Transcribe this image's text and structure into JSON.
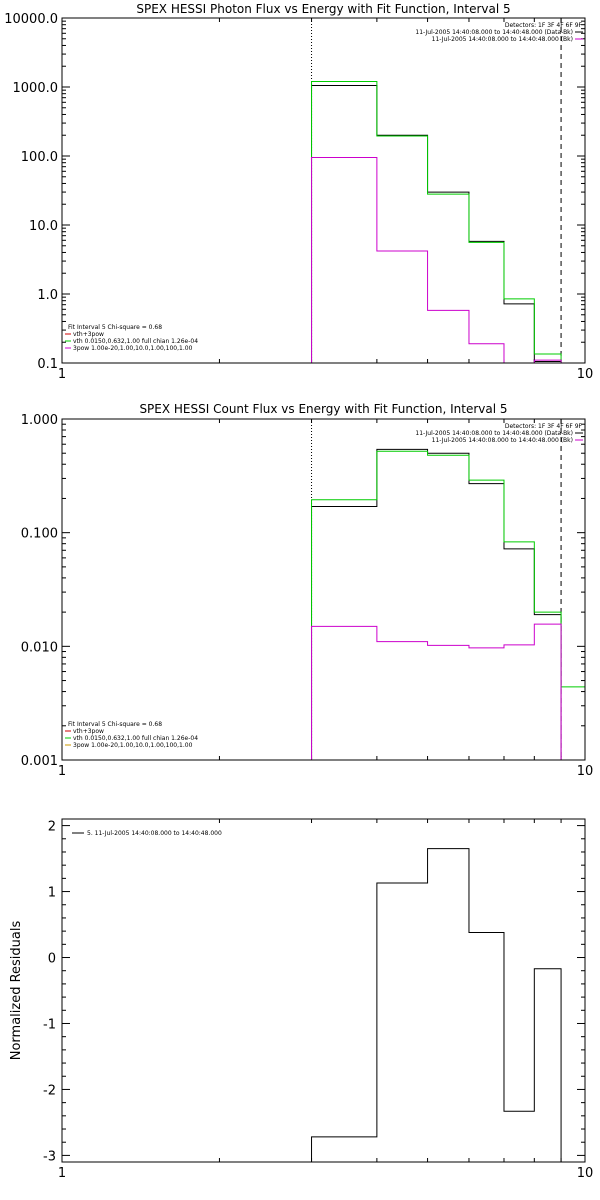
{
  "chart_data": [
    {
      "type": "line",
      "id": "photon",
      "title": "SPEX HESSI Photon Flux vs Energy with Fit Function, Interval 5",
      "xlabel": "",
      "ylabel": "",
      "xscale": "log",
      "yscale": "log",
      "xlim": [
        1,
        10
      ],
      "ylim": [
        0.1,
        10000
      ],
      "x_ticks": [
        "1",
        "10"
      ],
      "y_ticks": [
        "0.1",
        "1.0",
        "10.0",
        "100.0",
        "1000.0",
        "10000.0"
      ],
      "x_edges": [
        3,
        4,
        5,
        6,
        7,
        8,
        9
      ],
      "series": [
        {
          "color": "#000000",
          "values": [
            1050,
            200,
            30,
            5.8,
            0.72,
            0.105
          ]
        },
        {
          "color": "#00cc00",
          "values": [
            1200,
            195,
            28,
            5.6,
            0.85,
            0.135
          ]
        },
        {
          "color": "#cc00cc",
          "values": [
            95,
            4.2,
            0.58,
            0.19,
            0.1,
            0.11
          ]
        }
      ],
      "vlines": [
        {
          "x": 3,
          "style": "dotted"
        },
        {
          "x": 9,
          "style": "dashed"
        }
      ],
      "legend_topright": [
        {
          "text": "Detectors: 1F 3F 4F 6F 9F",
          "color": ""
        },
        {
          "text": "11-Jul-2005 14:40:08.000 to 14:40:48.000 (Data-Bk)",
          "color": "#000000"
        },
        {
          "text": "11-Jul-2005 14:40:08.000 to 14:40:48.000 (Bk)",
          "color": "#cc00cc"
        }
      ],
      "legend_bottomleft": [
        {
          "text": "Fit Interval 5   Chi-square = 0.68",
          "color": ""
        },
        {
          "text": "vth+3pow",
          "color": "#cc0000"
        },
        {
          "text": "vth 0.0150,0.632,1.00  full chian 1.26e-04",
          "color": "#00cc00"
        },
        {
          "text": "3pow 1.00e-20,1.00,10.0,1.00,100,1.00",
          "color": "#cc00cc"
        }
      ]
    },
    {
      "type": "line",
      "id": "count",
      "title": "SPEX HESSI Count Flux vs Energy with Fit Function, Interval 5",
      "xlabel": "",
      "ylabel": "",
      "xscale": "log",
      "yscale": "log",
      "xlim": [
        1,
        10
      ],
      "ylim": [
        0.001,
        1
      ],
      "x_ticks": [
        "1",
        "10"
      ],
      "y_ticks": [
        "0.001",
        "0.010",
        "0.100",
        "1.000"
      ],
      "x_edges": [
        3,
        4,
        5,
        6,
        7,
        8,
        9,
        10
      ],
      "series": [
        {
          "color": "#000000",
          "values": [
            0.17,
            0.54,
            0.5,
            0.27,
            0.072,
            0.019,
            null
          ]
        },
        {
          "color": "#00cc00",
          "values": [
            0.195,
            0.52,
            0.48,
            0.29,
            0.083,
            0.02,
            0.0044
          ]
        },
        {
          "color": "#cc00cc",
          "values": [
            0.015,
            0.011,
            0.0102,
            0.0097,
            0.0103,
            0.0157,
            null
          ]
        }
      ],
      "vlines": [
        {
          "x": 3,
          "style": "dotted"
        },
        {
          "x": 9,
          "style": "dashed"
        }
      ],
      "legend_topright": [
        {
          "text": "Detectors: 1F 3F 4F 6F 9F",
          "color": ""
        },
        {
          "text": "11-Jul-2005 14:40:08.000 to 14:40:48.000 (Data-Bk)",
          "color": "#000000"
        },
        {
          "text": "11-Jul-2005 14:40:08.000 to 14:40:48.000 (Bk)",
          "color": "#cc00cc"
        }
      ],
      "legend_bottomleft": [
        {
          "text": "Fit Interval 5   Chi-square = 0.68",
          "color": ""
        },
        {
          "text": "vth+3pow",
          "color": "#cc0000"
        },
        {
          "text": "vth 0.0150,0.632,1.00  full chian 1.26e-04",
          "color": "#00cc00"
        },
        {
          "text": "3pow 1.00e-20,1.00,10.0,1.00,100,1.00",
          "color": "#cc9900"
        }
      ]
    },
    {
      "type": "line",
      "id": "residuals",
      "title": "",
      "xlabel": "",
      "ylabel": "Normalized Residuals",
      "xscale": "log",
      "yscale": "linear",
      "xlim": [
        1,
        10
      ],
      "ylim": [
        -3.1,
        2.1
      ],
      "x_ticks": [
        "1",
        "10"
      ],
      "y_ticks": [
        "-3",
        "-2",
        "-1",
        "0",
        "1",
        "2"
      ],
      "x_edges": [
        3,
        4,
        5,
        6,
        7,
        8,
        9
      ],
      "series": [
        {
          "color": "#000000",
          "values": [
            -2.72,
            1.13,
            1.65,
            0.38,
            -2.33,
            -0.17
          ]
        }
      ],
      "vlines": [],
      "legend_topleft": [
        {
          "text": "5. 11-Jul-2005 14:40:08.000 to 14:40:48.000",
          "color": "#000000"
        }
      ]
    }
  ]
}
